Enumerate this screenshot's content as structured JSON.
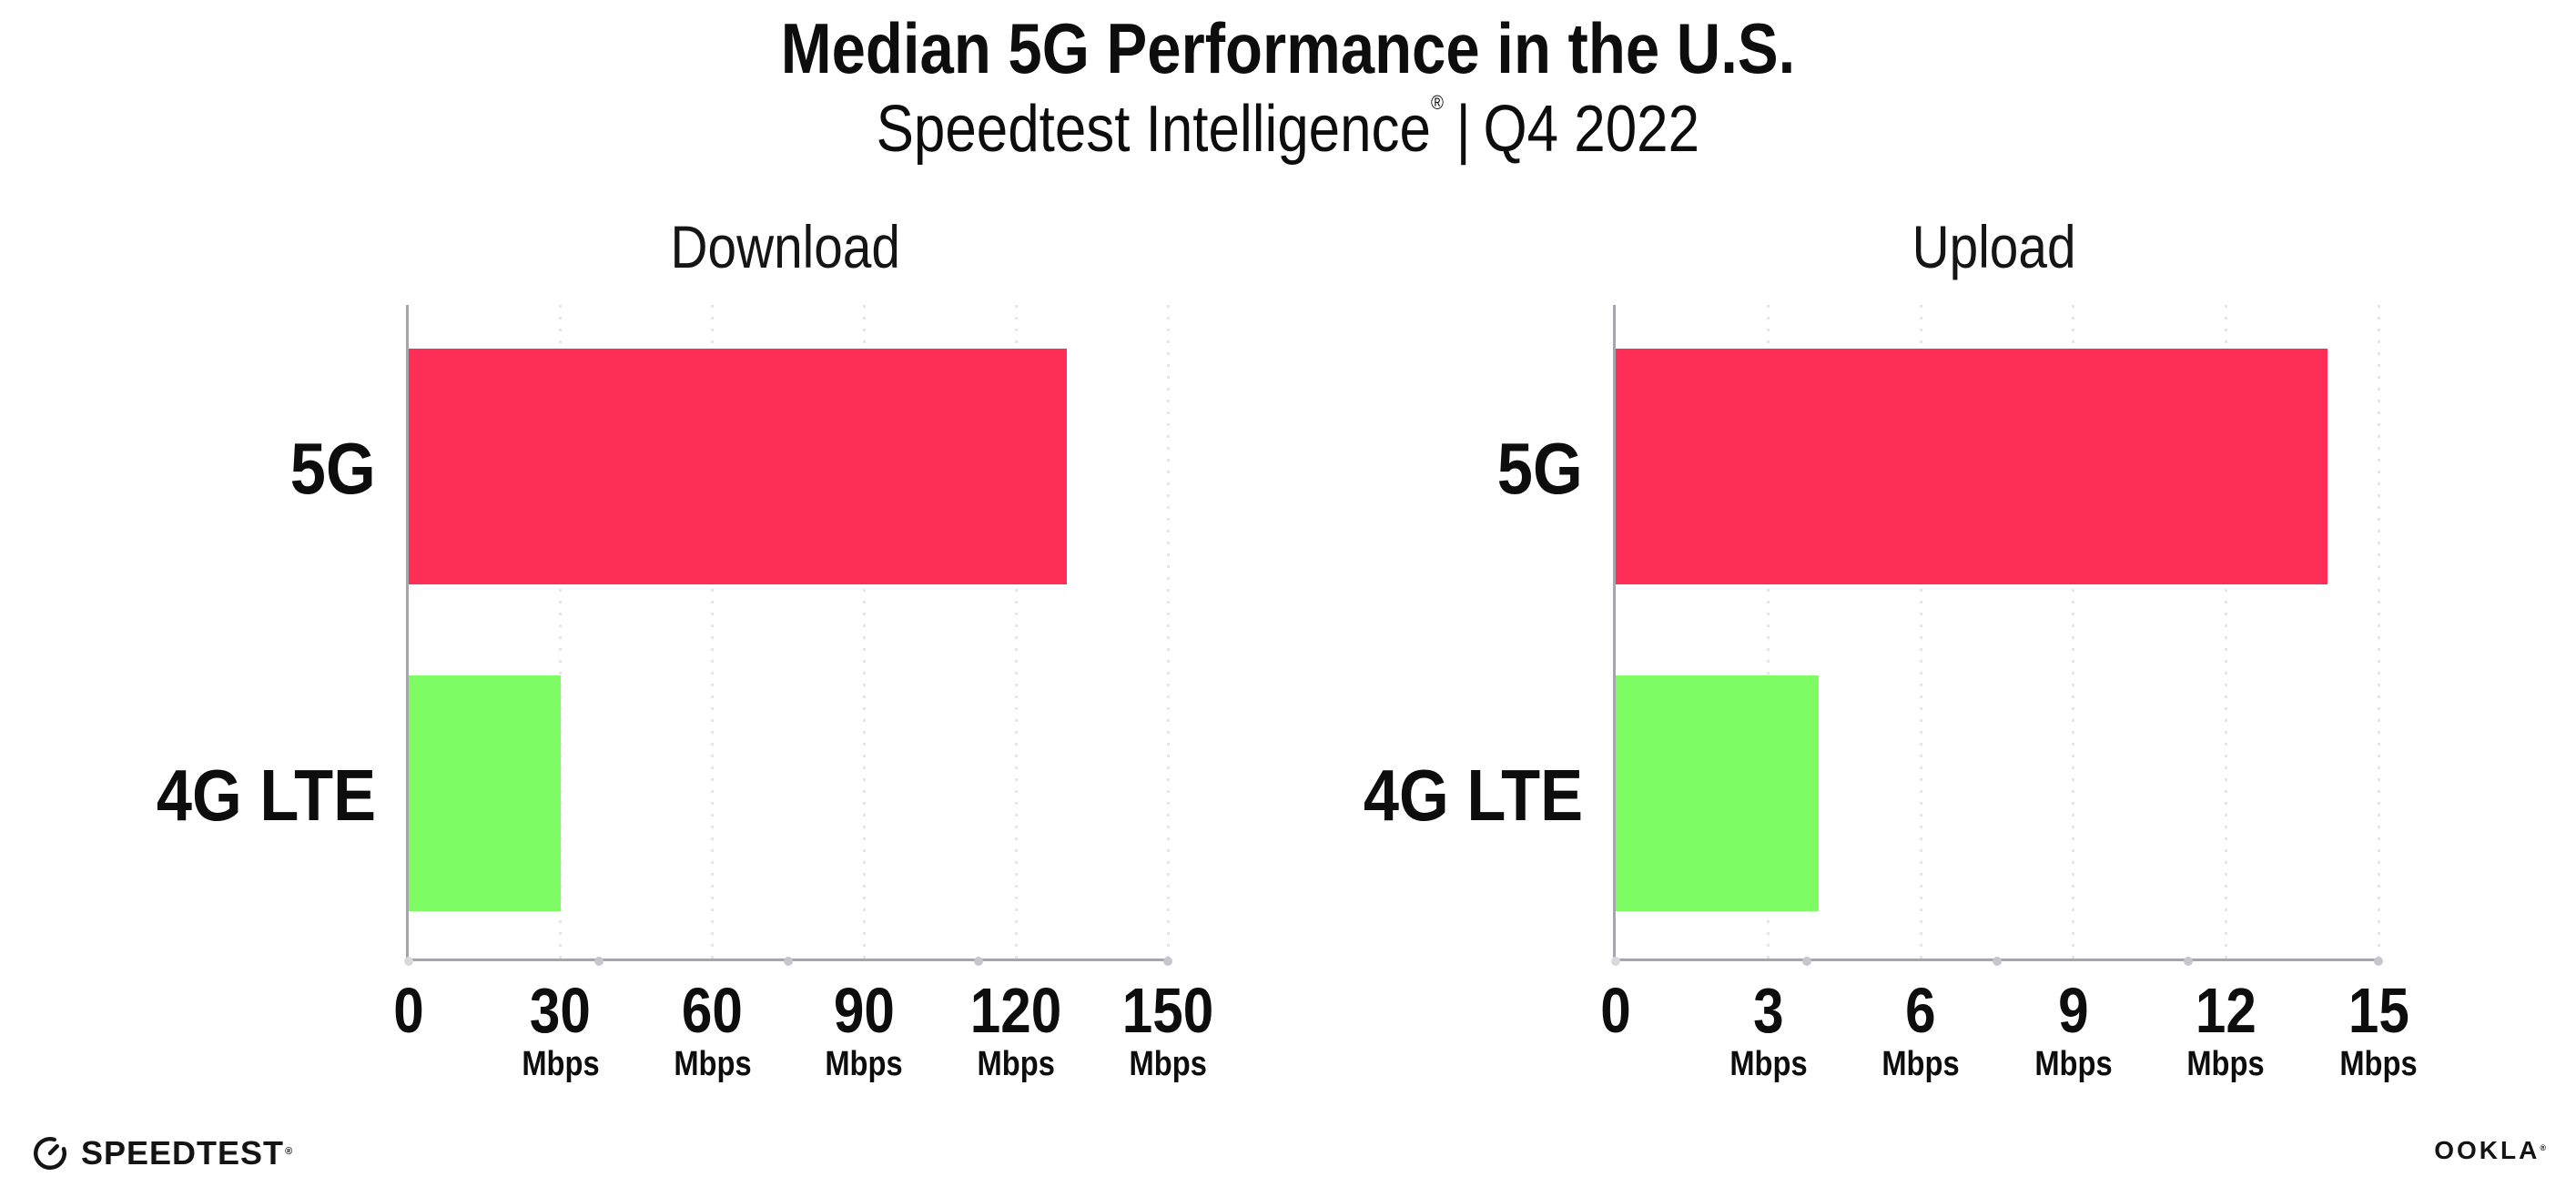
{
  "header": {
    "title": "Median 5G Performance in the U.S.",
    "subtitle_brand": "Speedtest Intelligence",
    "subtitle_registered": "®",
    "subtitle_divider": "|",
    "subtitle_period": "Q4 2022"
  },
  "colors": {
    "bar_5g": "#ff2e56",
    "bar_4g_lte": "#7dfd63",
    "gridline": "#e5e5ef",
    "axis": "#a5a5ac",
    "axis_tick_dot": "#c6c6cf",
    "text": "#0d0d0d",
    "background": "#ffffff"
  },
  "chart_data": [
    {
      "type": "bar",
      "orientation": "horizontal",
      "title": "Download",
      "categories": [
        "5G",
        "4G LTE"
      ],
      "values": [
        130,
        30
      ],
      "unit": "Mbps",
      "xlim": [
        0,
        150
      ],
      "xticks": [
        0,
        30,
        60,
        90,
        120,
        150
      ],
      "bar_colors": [
        "#ff2e56",
        "#7dfd63"
      ],
      "grid": "dotted vertical lines at labeled ticks",
      "legend": "none"
    },
    {
      "type": "bar",
      "orientation": "horizontal",
      "title": "Upload",
      "categories": [
        "5G",
        "4G LTE"
      ],
      "values": [
        14,
        4
      ],
      "unit": "Mbps",
      "xlim": [
        0,
        15
      ],
      "xticks": [
        0,
        3,
        6,
        9,
        12,
        15
      ],
      "bar_colors": [
        "#ff2e56",
        "#7dfd63"
      ],
      "grid": "dotted vertical lines at labeled ticks",
      "legend": "none"
    }
  ],
  "footer": {
    "speedtest_icon": "speedtest-gauge-icon",
    "speedtest_wordmark": "SPEEDTEST",
    "speedtest_registered": "®",
    "ookla_wordmark": "OOKLA",
    "ookla_registered": "®"
  }
}
